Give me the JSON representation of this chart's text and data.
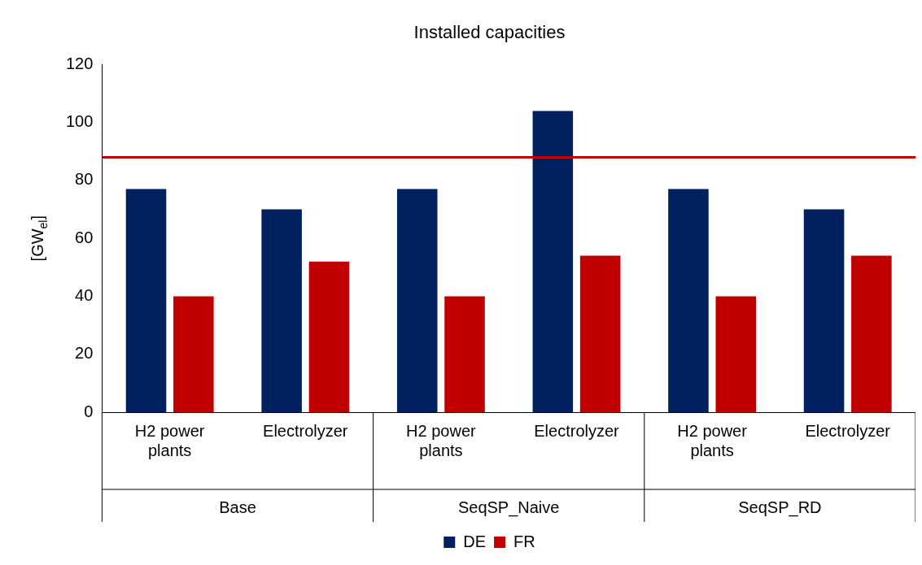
{
  "chart_data": {
    "type": "bar",
    "title": "Installed capacities",
    "ylabel": "[GW$_{el}$]",
    "categories": [
      "H2 power plants",
      "Electrolyzer",
      "H2 power plants",
      "Electrolyzer",
      "H2 power plants",
      "Electrolyzer"
    ],
    "annotations": [
      "Base",
      "SeqSP_Naive",
      "SeqSP_RD"
    ],
    "series": [
      {
        "name": "DE",
        "color": "#002060",
        "values": [
          77,
          70,
          77,
          104,
          77,
          70
        ]
      },
      {
        "name": "FR",
        "color": "#c00000",
        "values": [
          40,
          52,
          40,
          54,
          40,
          54
        ]
      }
    ],
    "ylim": [
      0,
      120
    ],
    "yticks": [
      0,
      20,
      40,
      60,
      80,
      100,
      120
    ],
    "grid": false,
    "legend": "bottom",
    "ref_lines": [
      {
        "axis": "y",
        "value": 88,
        "color": "#c00000"
      }
    ]
  }
}
